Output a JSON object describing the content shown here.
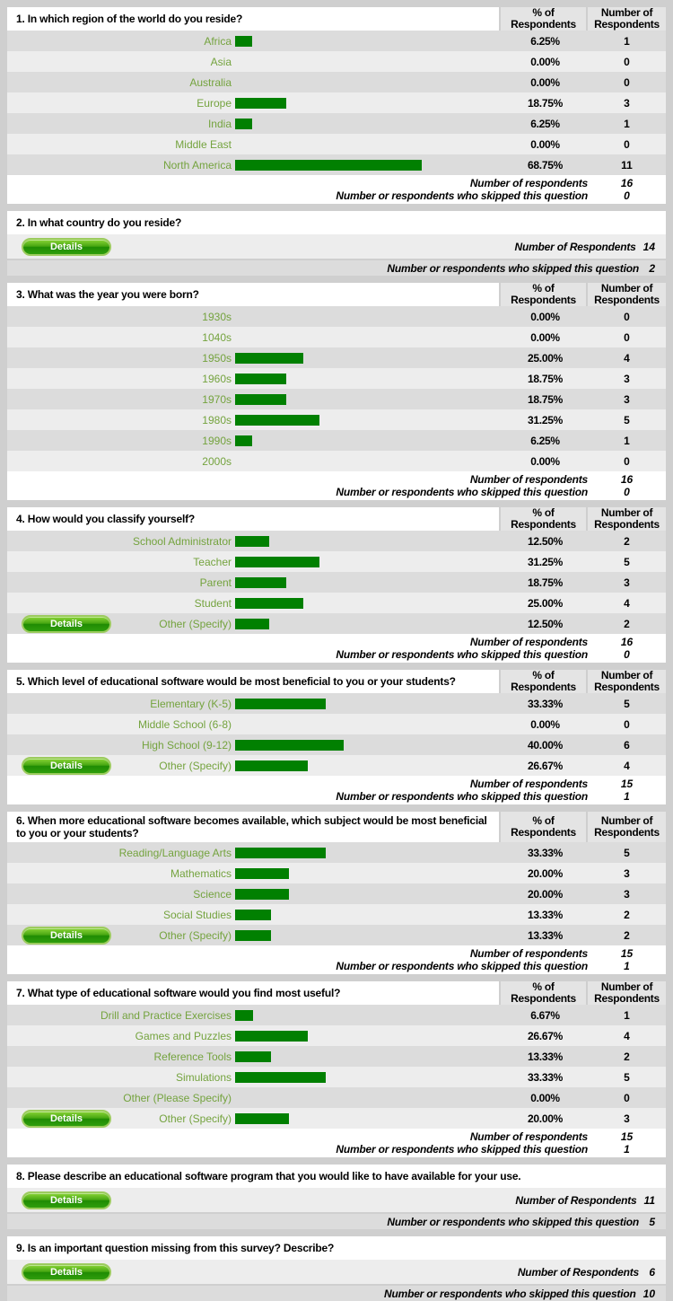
{
  "labels": {
    "pct_header": [
      "% of",
      "Respondents"
    ],
    "num_header": [
      "Number of",
      "Respondents"
    ],
    "respondents": "Number of respondents",
    "respondents_cap": "Number of Respondents",
    "skipped": "Number or respondents who skipped this question",
    "details": "Details"
  },
  "colors": {
    "bar_green": "#018001",
    "label_green": "#74a33e",
    "button_green": "#2f9e0d",
    "page_bg": "#cfcfcf"
  },
  "questions": [
    {
      "number": 1,
      "type": "choice",
      "title": "1. In which region of the world do you reside?",
      "options": [
        {
          "label": "Africa",
          "pct": "6.25%",
          "pct_value": 6.25,
          "count": 1,
          "details": false
        },
        {
          "label": "Asia",
          "pct": "0.00%",
          "pct_value": 0,
          "count": 0,
          "details": false
        },
        {
          "label": "Australia",
          "pct": "0.00%",
          "pct_value": 0,
          "count": 0,
          "details": false
        },
        {
          "label": "Europe",
          "pct": "18.75%",
          "pct_value": 18.75,
          "count": 3,
          "details": false
        },
        {
          "label": "India",
          "pct": "6.25%",
          "pct_value": 6.25,
          "count": 1,
          "details": false
        },
        {
          "label": "Middle East",
          "pct": "0.00%",
          "pct_value": 0,
          "count": 0,
          "details": false
        },
        {
          "label": "North America",
          "pct": "68.75%",
          "pct_value": 68.75,
          "count": 11,
          "details": false
        }
      ],
      "respondents": 16,
      "skipped": 0
    },
    {
      "number": 2,
      "type": "text",
      "title": "2. In what country do you reside?",
      "respondents": 14,
      "skipped": 2
    },
    {
      "number": 3,
      "type": "choice",
      "title": "3. What was the year you were born?",
      "options": [
        {
          "label": "1930s",
          "pct": "0.00%",
          "pct_value": 0,
          "count": 0,
          "details": false
        },
        {
          "label": "1040s",
          "pct": "0.00%",
          "pct_value": 0,
          "count": 0,
          "details": false
        },
        {
          "label": "1950s",
          "pct": "25.00%",
          "pct_value": 25,
          "count": 4,
          "details": false
        },
        {
          "label": "1960s",
          "pct": "18.75%",
          "pct_value": 18.75,
          "count": 3,
          "details": false
        },
        {
          "label": "1970s",
          "pct": "18.75%",
          "pct_value": 18.75,
          "count": 3,
          "details": false
        },
        {
          "label": "1980s",
          "pct": "31.25%",
          "pct_value": 31.25,
          "count": 5,
          "details": false
        },
        {
          "label": "1990s",
          "pct": "6.25%",
          "pct_value": 6.25,
          "count": 1,
          "details": false
        },
        {
          "label": "2000s",
          "pct": "0.00%",
          "pct_value": 0,
          "count": 0,
          "details": false
        }
      ],
      "respondents": 16,
      "skipped": 0
    },
    {
      "number": 4,
      "type": "choice",
      "title": "4. How would you classify yourself?",
      "options": [
        {
          "label": "School Administrator",
          "pct": "12.50%",
          "pct_value": 12.5,
          "count": 2,
          "details": false
        },
        {
          "label": "Teacher",
          "pct": "31.25%",
          "pct_value": 31.25,
          "count": 5,
          "details": false
        },
        {
          "label": "Parent",
          "pct": "18.75%",
          "pct_value": 18.75,
          "count": 3,
          "details": false
        },
        {
          "label": "Student",
          "pct": "25.00%",
          "pct_value": 25,
          "count": 4,
          "details": false
        },
        {
          "label": "Other (Specify)",
          "pct": "12.50%",
          "pct_value": 12.5,
          "count": 2,
          "details": true
        }
      ],
      "respondents": 16,
      "skipped": 0
    },
    {
      "number": 5,
      "type": "choice",
      "title": "5. Which level of educational software would be most beneficial to you or your students?",
      "options": [
        {
          "label": "Elementary (K-5)",
          "pct": "33.33%",
          "pct_value": 33.33,
          "count": 5,
          "details": false
        },
        {
          "label": "Middle School (6-8)",
          "pct": "0.00%",
          "pct_value": 0,
          "count": 0,
          "details": false
        },
        {
          "label": "High School (9-12)",
          "pct": "40.00%",
          "pct_value": 40,
          "count": 6,
          "details": false
        },
        {
          "label": "Other (Specify)",
          "pct": "26.67%",
          "pct_value": 26.67,
          "count": 4,
          "details": true
        }
      ],
      "respondents": 15,
      "skipped": 1
    },
    {
      "number": 6,
      "type": "choice",
      "title": "6. When more educational software becomes available, which subject would be most beneficial to you or your students?",
      "options": [
        {
          "label": "Reading/Language Arts",
          "pct": "33.33%",
          "pct_value": 33.33,
          "count": 5,
          "details": false
        },
        {
          "label": "Mathematics",
          "pct": "20.00%",
          "pct_value": 20,
          "count": 3,
          "details": false
        },
        {
          "label": "Science",
          "pct": "20.00%",
          "pct_value": 20,
          "count": 3,
          "details": false
        },
        {
          "label": "Social Studies",
          "pct": "13.33%",
          "pct_value": 13.33,
          "count": 2,
          "details": false
        },
        {
          "label": "Other (Specify)",
          "pct": "13.33%",
          "pct_value": 13.33,
          "count": 2,
          "details": true
        }
      ],
      "respondents": 15,
      "skipped": 1
    },
    {
      "number": 7,
      "type": "choice",
      "title": "7. What type of educational software would you find most useful?",
      "options": [
        {
          "label": "Drill and Practice Exercises",
          "pct": "6.67%",
          "pct_value": 6.67,
          "count": 1,
          "details": false
        },
        {
          "label": "Games and Puzzles",
          "pct": "26.67%",
          "pct_value": 26.67,
          "count": 4,
          "details": false
        },
        {
          "label": "Reference Tools",
          "pct": "13.33%",
          "pct_value": 13.33,
          "count": 2,
          "details": false
        },
        {
          "label": "Simulations",
          "pct": "33.33%",
          "pct_value": 33.33,
          "count": 5,
          "details": false
        },
        {
          "label": "Other (Please Specify)",
          "pct": "0.00%",
          "pct_value": 0,
          "count": 0,
          "details": false
        },
        {
          "label": "Other (Specify)",
          "pct": "20.00%",
          "pct_value": 20,
          "count": 3,
          "details": true
        }
      ],
      "respondents": 15,
      "skipped": 1
    },
    {
      "number": 8,
      "type": "text",
      "title": "8. Please describe an educational software program that you would like to have available for your use.",
      "respondents": 11,
      "skipped": 5
    },
    {
      "number": 9,
      "type": "text",
      "title": "9. Is an important question missing from this survey? Describe?",
      "respondents": 6,
      "skipped": 10
    }
  ]
}
